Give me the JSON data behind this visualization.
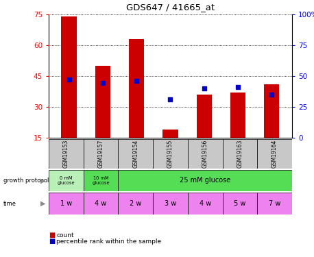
{
  "title": "GDS647 / 41665_at",
  "samples": [
    "GSM19153",
    "GSM19157",
    "GSM19154",
    "GSM19155",
    "GSM19156",
    "GSM19163",
    "GSM19164"
  ],
  "counts": [
    74,
    50,
    63,
    19,
    36,
    37,
    41
  ],
  "percentile_ranks": [
    47,
    44,
    46,
    31,
    40,
    41,
    35
  ],
  "ylim_left": [
    15,
    75
  ],
  "ylim_right": [
    0,
    100
  ],
  "yticks_left": [
    15,
    30,
    45,
    60,
    75
  ],
  "yticks_right": [
    0,
    25,
    50,
    75,
    100
  ],
  "ytick_labels_right": [
    "0",
    "25",
    "50",
    "75",
    "100%"
  ],
  "bar_color": "#cc0000",
  "dot_color": "#0000cc",
  "time_labels": [
    "1 w",
    "4 w",
    "2 w",
    "3 w",
    "4 w",
    "5 w",
    "7 w"
  ],
  "time_color": "#ee82ee",
  "sample_bg_color": "#c8c8c8",
  "gp_color_0mM": "#b8f0b8",
  "gp_color_10mM": "#55dd55",
  "gp_color_25mM": "#55dd55",
  "legend_count_color": "#cc0000",
  "legend_dot_color": "#0000cc",
  "left_label_color": "#555555"
}
